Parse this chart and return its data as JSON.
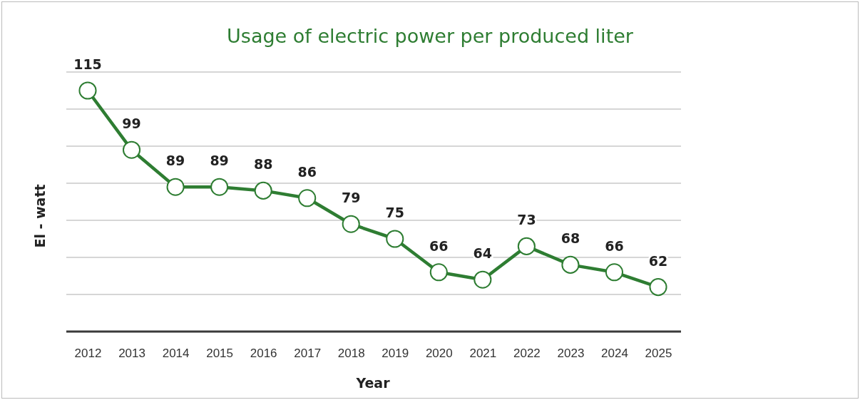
{
  "chart_data": {
    "type": "line",
    "title": "Usage of electric power per produced liter",
    "xlabel": "Year",
    "ylabel": "El - watt",
    "categories": [
      "2012",
      "2013",
      "2014",
      "2015",
      "2016",
      "2017",
      "2018",
      "2019",
      "2020",
      "2021",
      "2022",
      "2023",
      "2024",
      "2025"
    ],
    "series": [
      {
        "color": "#2e7d32",
        "values": [
          115,
          99,
          89,
          89,
          88,
          86,
          79,
          75,
          66,
          64,
          73,
          68,
          66,
          62
        ]
      }
    ],
    "ylim": [
      50,
      120
    ],
    "yticks": [
      {
        "value": 50,
        "label": null
      },
      {
        "value": 60,
        "label": null
      },
      {
        "value": 70,
        "label": null
      },
      {
        "value": 80,
        "label": null
      },
      {
        "value": 90,
        "label": null
      },
      {
        "value": 100,
        "label": null
      },
      {
        "value": 110,
        "label": null
      },
      {
        "value": 120,
        "label": null
      }
    ],
    "tick_labels": "x",
    "grid": "y",
    "data_labels": true,
    "marker": "circle",
    "line_style": "solid"
  }
}
